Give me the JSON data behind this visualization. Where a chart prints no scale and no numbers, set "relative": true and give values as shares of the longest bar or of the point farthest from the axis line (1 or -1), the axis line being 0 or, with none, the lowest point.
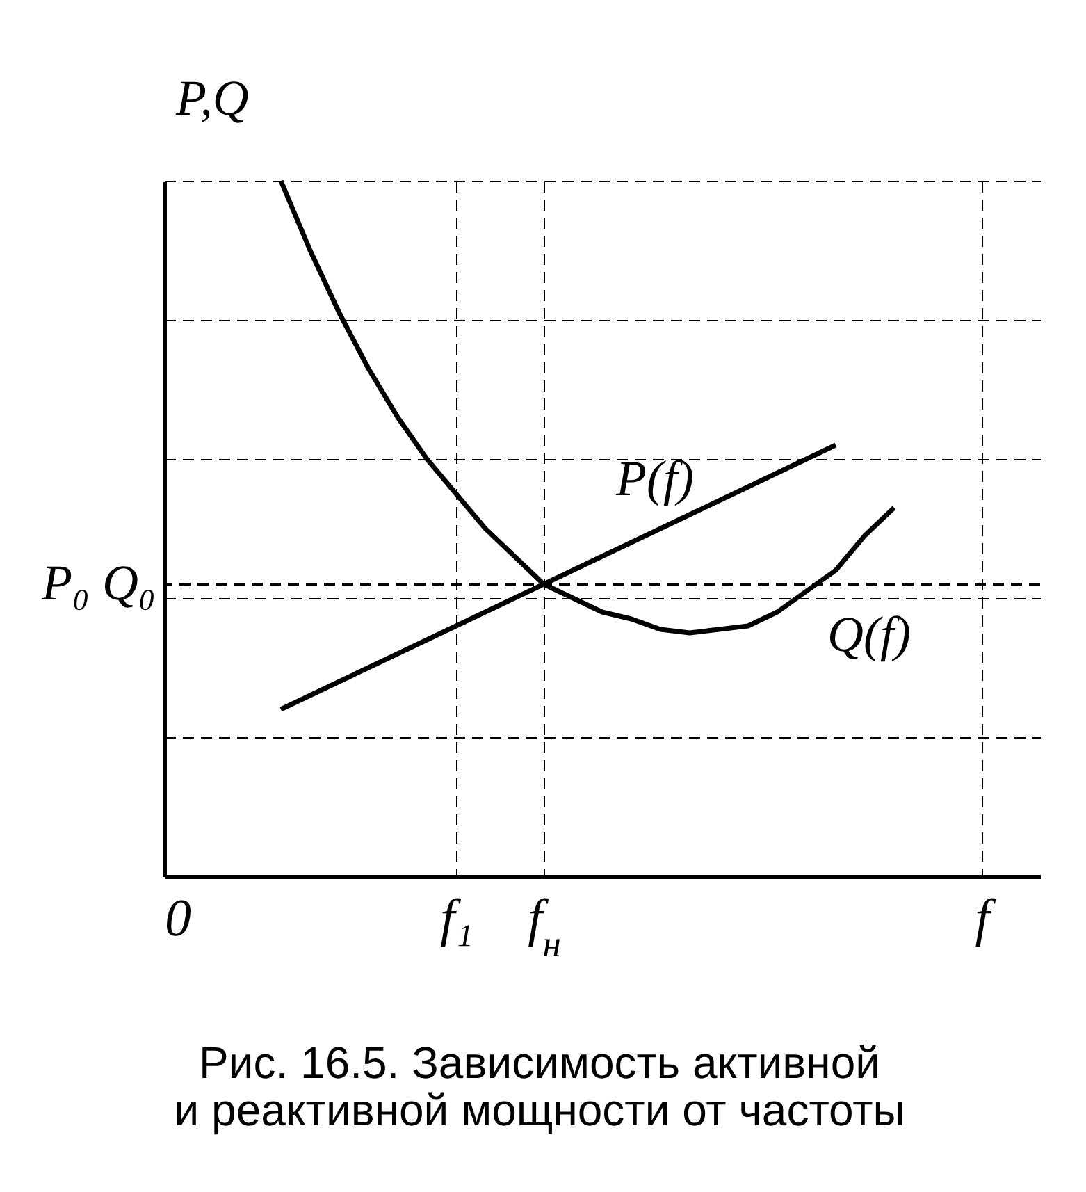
{
  "chart_data": {
    "type": "line",
    "relative": true,
    "title": "Рис. 16.5. Зависимость активной и реактивной мощности от частоты",
    "ylabel": "P,Q",
    "categories": [
      "0",
      null,
      null,
      null,
      null,
      null,
      null,
      null,
      null,
      null,
      "f₁",
      null,
      null,
      "f$_{н}$",
      null,
      null,
      null,
      null,
      null,
      null,
      null,
      null,
      null,
      null,
      null,
      null,
      null,
      null,
      "f",
      null,
      null
    ],
    "tick_labels": "x",
    "grid": true,
    "line_style": "solid",
    "ref_lines": [
      {
        "axis": "y",
        "value": 0.42,
        "label": "P₀ Q₀",
        "line_style": "dashed"
      }
    ],
    "series": [
      {
        "name": "P(f)",
        "color": "#000000",
        "values": [
          null,
          null,
          null,
          null,
          0.24,
          0.26,
          0.28,
          0.3,
          0.32,
          0.34,
          0.36,
          0.38,
          0.4,
          0.42,
          0.44,
          0.46,
          0.48,
          0.5,
          0.52,
          0.54,
          0.56,
          0.58,
          0.6,
          0.62,
          null,
          null,
          null,
          null,
          null,
          null,
          null
        ]
      },
      {
        "name": "Q(f)",
        "color": "#000000",
        "values": [
          null,
          null,
          null,
          null,
          1.0,
          0.9,
          0.81,
          0.73,
          0.66,
          0.6,
          0.55,
          0.5,
          0.46,
          0.42,
          0.4,
          0.38,
          0.37,
          0.355,
          0.35,
          0.355,
          0.36,
          0.38,
          0.41,
          0.44,
          0.49,
          0.53,
          null,
          null,
          null,
          null,
          null
        ]
      }
    ]
  }
}
